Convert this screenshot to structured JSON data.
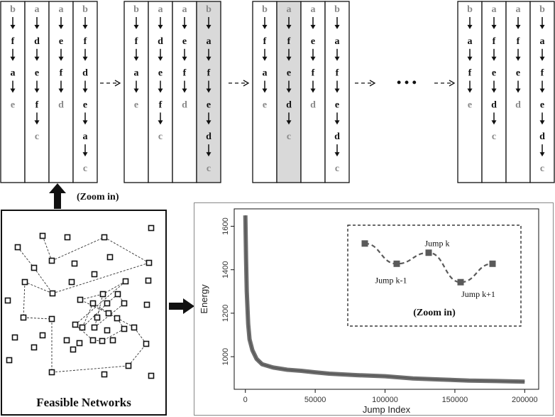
{
  "order_panels": [
    {
      "highlight": -1,
      "columns": [
        {
          "nodes": [
            "b",
            "f",
            "a",
            "e"
          ],
          "gray": [
            0,
            3
          ]
        },
        {
          "nodes": [
            "a",
            "d",
            "e",
            "f",
            "c"
          ],
          "gray": [
            0,
            4
          ]
        },
        {
          "nodes": [
            "a",
            "e",
            "f",
            "d"
          ],
          "gray": [
            0,
            3
          ]
        },
        {
          "nodes": [
            "b",
            "f",
            "d",
            "e",
            "a",
            "c"
          ],
          "gray": [
            0,
            5
          ]
        }
      ]
    },
    {
      "highlight": 3,
      "columns": [
        {
          "nodes": [
            "b",
            "f",
            "a",
            "e"
          ],
          "gray": [
            0,
            3
          ]
        },
        {
          "nodes": [
            "a",
            "d",
            "e",
            "f",
            "c"
          ],
          "gray": [
            0,
            4
          ]
        },
        {
          "nodes": [
            "a",
            "e",
            "f",
            "d"
          ],
          "gray": [
            0,
            3
          ]
        },
        {
          "nodes": [
            "b",
            "a",
            "f",
            "e",
            "d",
            "c"
          ],
          "gray": [
            0,
            5
          ]
        }
      ]
    },
    {
      "highlight": 1,
      "columns": [
        {
          "nodes": [
            "b",
            "f",
            "a",
            "e"
          ],
          "gray": [
            0,
            3
          ]
        },
        {
          "nodes": [
            "a",
            "f",
            "e",
            "d",
            "c"
          ],
          "gray": [
            0,
            4
          ]
        },
        {
          "nodes": [
            "a",
            "e",
            "f",
            "d"
          ],
          "gray": [
            0,
            3
          ]
        },
        {
          "nodes": [
            "b",
            "a",
            "f",
            "e",
            "d",
            "c"
          ],
          "gray": [
            0,
            5
          ]
        }
      ]
    },
    {
      "highlight": -1,
      "columns": [
        {
          "nodes": [
            "b",
            "a",
            "f",
            "e"
          ],
          "gray": [
            0,
            3
          ]
        },
        {
          "nodes": [
            "a",
            "f",
            "e",
            "d",
            "c"
          ],
          "gray": [
            0,
            4
          ]
        },
        {
          "nodes": [
            "a",
            "f",
            "e",
            "d"
          ],
          "gray": [
            0,
            3
          ]
        },
        {
          "nodes": [
            "b",
            "a",
            "f",
            "e",
            "d",
            "c"
          ],
          "gray": [
            0,
            5
          ]
        }
      ]
    }
  ],
  "ellipsis": "• • •",
  "zoom_label_top": "(Zoom in)",
  "feasible_title": "Feasible Networks",
  "chart_data": {
    "type": "line",
    "xlabel": "Jump Index",
    "ylabel": "Energy",
    "xlim": [
      -8000,
      210000
    ],
    "ylim": [
      850,
      1680
    ],
    "x_ticks": [
      0,
      50000,
      100000,
      150000,
      200000
    ],
    "y_ticks": [
      1000,
      1200,
      1400,
      1600
    ],
    "series": [
      {
        "x": [
          0,
          500,
          1000,
          2000,
          3000,
          5000,
          8000,
          12000,
          20000,
          30000,
          40000,
          50000,
          60000,
          80000,
          100000,
          120000,
          140000,
          160000,
          180000,
          200000
        ],
        "y": [
          1650,
          1450,
          1300,
          1150,
          1080,
          1030,
          990,
          965,
          950,
          940,
          935,
          928,
          922,
          915,
          910,
          900,
          895,
          890,
          888,
          885
        ]
      }
    ],
    "inset": {
      "points": [
        {
          "label": "",
          "energy": 1540
        },
        {
          "label": "Jump k-1",
          "energy": 1430
        },
        {
          "label": "Jump k",
          "energy": 1490
        },
        {
          "label": "Jump k+1",
          "energy": 1330
        },
        {
          "label": "",
          "energy": 1430
        }
      ],
      "title": "(Zoom in)",
      "color": "#5a5a5a"
    }
  }
}
